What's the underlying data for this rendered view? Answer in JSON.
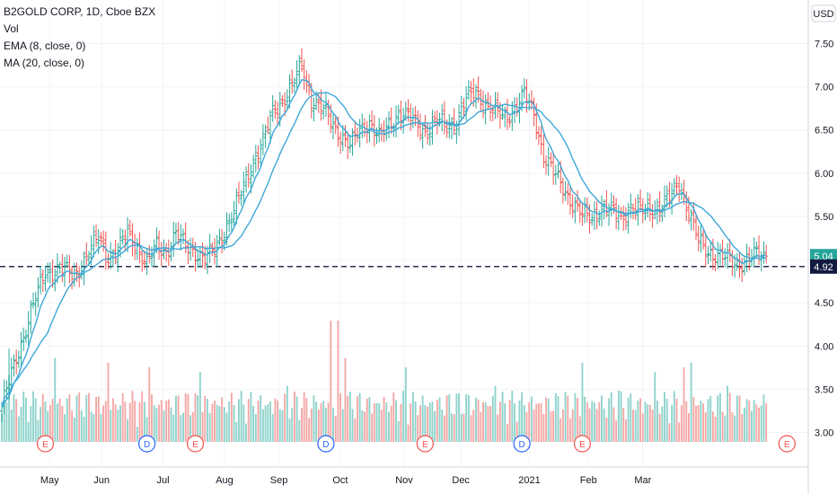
{
  "header": {
    "symbol": "B2GOLD CORP, 1D, Cboe BZX",
    "vol": "Vol",
    "ema": "EMA (8, close, 0)",
    "ma": "MA (20, close, 0)"
  },
  "currency": "USD",
  "colors": {
    "up": "#26a69a",
    "down": "#ef5350",
    "up_vol": "#8fd3cc",
    "down_vol": "#f4a8a6",
    "ma_line": "#3ea7d8",
    "ema_line": "#3ea7d8",
    "dashed": "#2a2e52",
    "last_price_tag": "#26a69a",
    "dashed_tag": "#131a40"
  },
  "chart_data": {
    "type": "line",
    "title": "B2GOLD CORP, 1D, Cboe BZX",
    "ylabel": "USD",
    "ylim": [
      2.6,
      7.9
    ],
    "y_ticks": [
      "3.00",
      "3.50",
      "4.00",
      "4.50",
      "5.00",
      "5.50",
      "6.00",
      "6.50",
      "7.00",
      "7.50"
    ],
    "x_ticks": [
      "May",
      "Jun",
      "Jul",
      "Aug",
      "Sep",
      "Oct",
      "Nov",
      "Dec",
      "2021",
      "Feb",
      "Mar"
    ],
    "last_price": "5.04",
    "dashed_level": "4.92",
    "close_anchors": [
      [
        0,
        3.3
      ],
      [
        6,
        3.85
      ],
      [
        12,
        4.4
      ],
      [
        18,
        4.85
      ],
      [
        24,
        4.9
      ],
      [
        30,
        4.8
      ],
      [
        34,
        5.0
      ],
      [
        40,
        5.25
      ],
      [
        44,
        5.05
      ],
      [
        48,
        5.1
      ],
      [
        52,
        5.3
      ],
      [
        56,
        5.15
      ],
      [
        60,
        4.95
      ],
      [
        64,
        5.15
      ],
      [
        68,
        5.1
      ],
      [
        72,
        5.3
      ],
      [
        76,
        5.15
      ],
      [
        80,
        5.1
      ],
      [
        84,
        5.0
      ],
      [
        88,
        5.1
      ],
      [
        92,
        5.35
      ],
      [
        96,
        5.55
      ],
      [
        100,
        5.85
      ],
      [
        104,
        6.15
      ],
      [
        108,
        6.35
      ],
      [
        112,
        6.7
      ],
      [
        116,
        6.85
      ],
      [
        120,
        7.0
      ],
      [
        124,
        7.25
      ],
      [
        128,
        6.85
      ],
      [
        132,
        6.75
      ],
      [
        136,
        6.6
      ],
      [
        140,
        6.45
      ],
      [
        144,
        6.3
      ],
      [
        148,
        6.5
      ],
      [
        152,
        6.6
      ],
      [
        156,
        6.4
      ],
      [
        160,
        6.55
      ],
      [
        164,
        6.7
      ],
      [
        168,
        6.65
      ],
      [
        172,
        6.55
      ],
      [
        176,
        6.5
      ],
      [
        180,
        6.6
      ],
      [
        184,
        6.55
      ],
      [
        188,
        6.6
      ],
      [
        192,
        6.85
      ],
      [
        196,
        6.95
      ],
      [
        200,
        6.8
      ],
      [
        204,
        6.7
      ],
      [
        208,
        6.65
      ],
      [
        212,
        6.75
      ],
      [
        216,
        6.9
      ],
      [
        220,
        6.7
      ],
      [
        224,
        6.2
      ],
      [
        228,
        6.0
      ],
      [
        232,
        5.85
      ],
      [
        236,
        5.65
      ],
      [
        240,
        5.5
      ],
      [
        244,
        5.5
      ],
      [
        248,
        5.6
      ],
      [
        252,
        5.55
      ],
      [
        256,
        5.5
      ],
      [
        260,
        5.6
      ],
      [
        264,
        5.55
      ],
      [
        268,
        5.6
      ],
      [
        272,
        5.6
      ],
      [
        276,
        5.7
      ],
      [
        280,
        5.9
      ],
      [
        284,
        5.55
      ],
      [
        288,
        5.2
      ],
      [
        292,
        5.1
      ],
      [
        296,
        5.05
      ],
      [
        300,
        5.0
      ],
      [
        304,
        4.95
      ],
      [
        308,
        5.0
      ],
      [
        312,
        5.05
      ],
      [
        316,
        5.04
      ]
    ],
    "volume_range": [
      0.2,
      1.0
    ],
    "earnings_markers": [
      18,
      80,
      175,
      240
    ],
    "dividend_markers": [
      60,
      134,
      215
    ],
    "future_earnings_marker": 330,
    "series": [
      {
        "name": "EMA (8, close, 0)",
        "period": 8
      },
      {
        "name": "MA (20, close, 0)",
        "period": 20
      }
    ]
  }
}
